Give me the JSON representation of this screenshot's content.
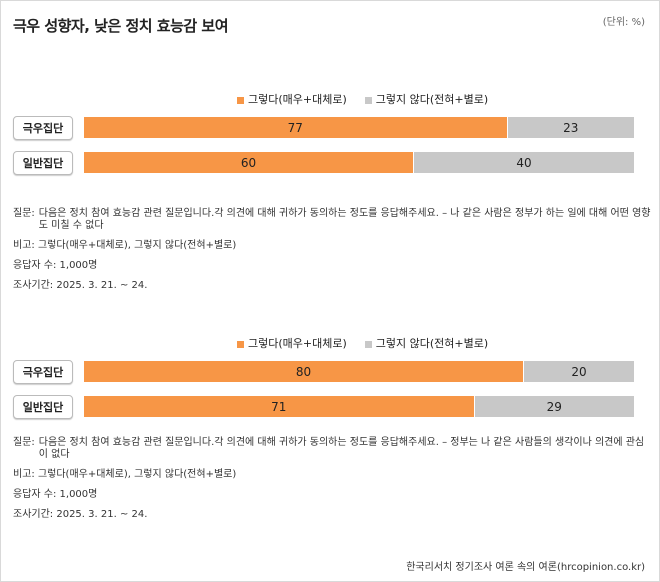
{
  "title": "극우 성향자, 낮은 정치 효능감 보여",
  "unit": "(단위: %)",
  "colors": {
    "agree": "#f79646",
    "disagree": "#c8c8c8"
  },
  "chart_data": [
    {
      "type": "bar",
      "stacked": true,
      "orientation": "horizontal",
      "legend": [
        "그렇다(매우+대체로)",
        "그렇지 않다(전혀+별로)"
      ],
      "legend_position": "top",
      "categories": [
        "극우집단",
        "일반집단"
      ],
      "series": [
        {
          "name": "그렇다(매우+대체로)",
          "values": [
            77,
            60
          ]
        },
        {
          "name": "그렇지 않다(전혀+별로)",
          "values": [
            23,
            40
          ]
        }
      ],
      "xlim": [
        0,
        100
      ],
      "notes": {
        "question_label": "질문:",
        "question": "다음은 정치 참여 효능감 관련 질문입니다.각 의견에 대해 귀하가 동의하는 정도를 응답해주세요. – 나 같은 사람은 정부가 하는 일에 대해 어떤 영향도 미칠 수 없다",
        "remark": "비고: 그렇다(매우+대체로), 그렇지 않다(전혀+별로)",
        "respondents": "응답자 수: 1,000명",
        "period": "조사기간: 2025. 3. 21. ~ 24."
      }
    },
    {
      "type": "bar",
      "stacked": true,
      "orientation": "horizontal",
      "legend": [
        "그렇다(매우+대체로)",
        "그렇지 않다(전혀+별로)"
      ],
      "legend_position": "top",
      "categories": [
        "극우집단",
        "일반집단"
      ],
      "series": [
        {
          "name": "그렇다(매우+대체로)",
          "values": [
            80,
            71
          ]
        },
        {
          "name": "그렇지 않다(전혀+별로)",
          "values": [
            20,
            29
          ]
        }
      ],
      "xlim": [
        0,
        100
      ],
      "notes": {
        "question_label": "질문:",
        "question": "다음은 정치 참여 효능감 관련 질문입니다.각 의견에 대해 귀하가 동의하는 정도를 응답해주세요. – 정부는 나 같은 사람들의 생각이나 의견에 관심이 없다",
        "remark": "비고: 그렇다(매우+대체로), 그렇지 않다(전혀+별로)",
        "respondents": "응답자 수: 1,000명",
        "period": "조사기간: 2025. 3. 21. ~ 24."
      }
    }
  ],
  "source": "한국리서치 정기조사 여론 속의 여론(hrcopinion.co.kr)"
}
